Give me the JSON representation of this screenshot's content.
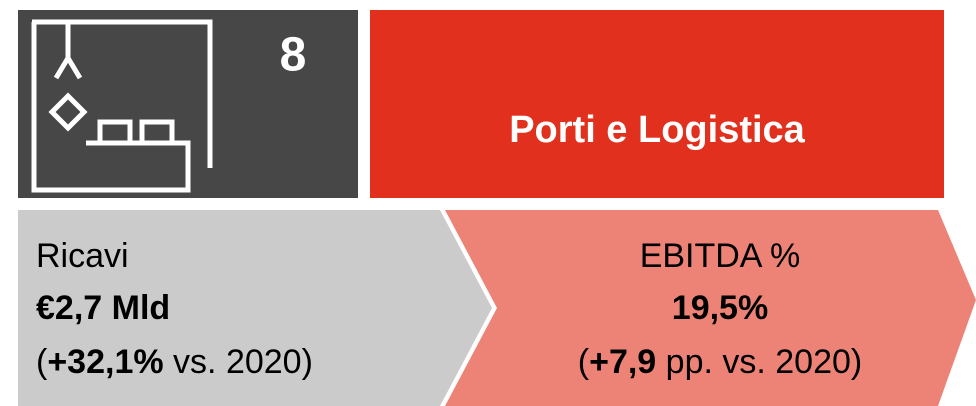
{
  "header": {
    "number": "8",
    "title": "Porti e Logistica"
  },
  "kpis": [
    {
      "label": "Ricavi",
      "value": "€2,7 Mld",
      "open": "(",
      "change": "+32,1%",
      "rest": "vs. 2020)"
    },
    {
      "label": "EBITDA %",
      "value": "19,5%",
      "open": "(",
      "change": "+7,9",
      "rest": "pp. vs. 2020)"
    }
  ]
}
